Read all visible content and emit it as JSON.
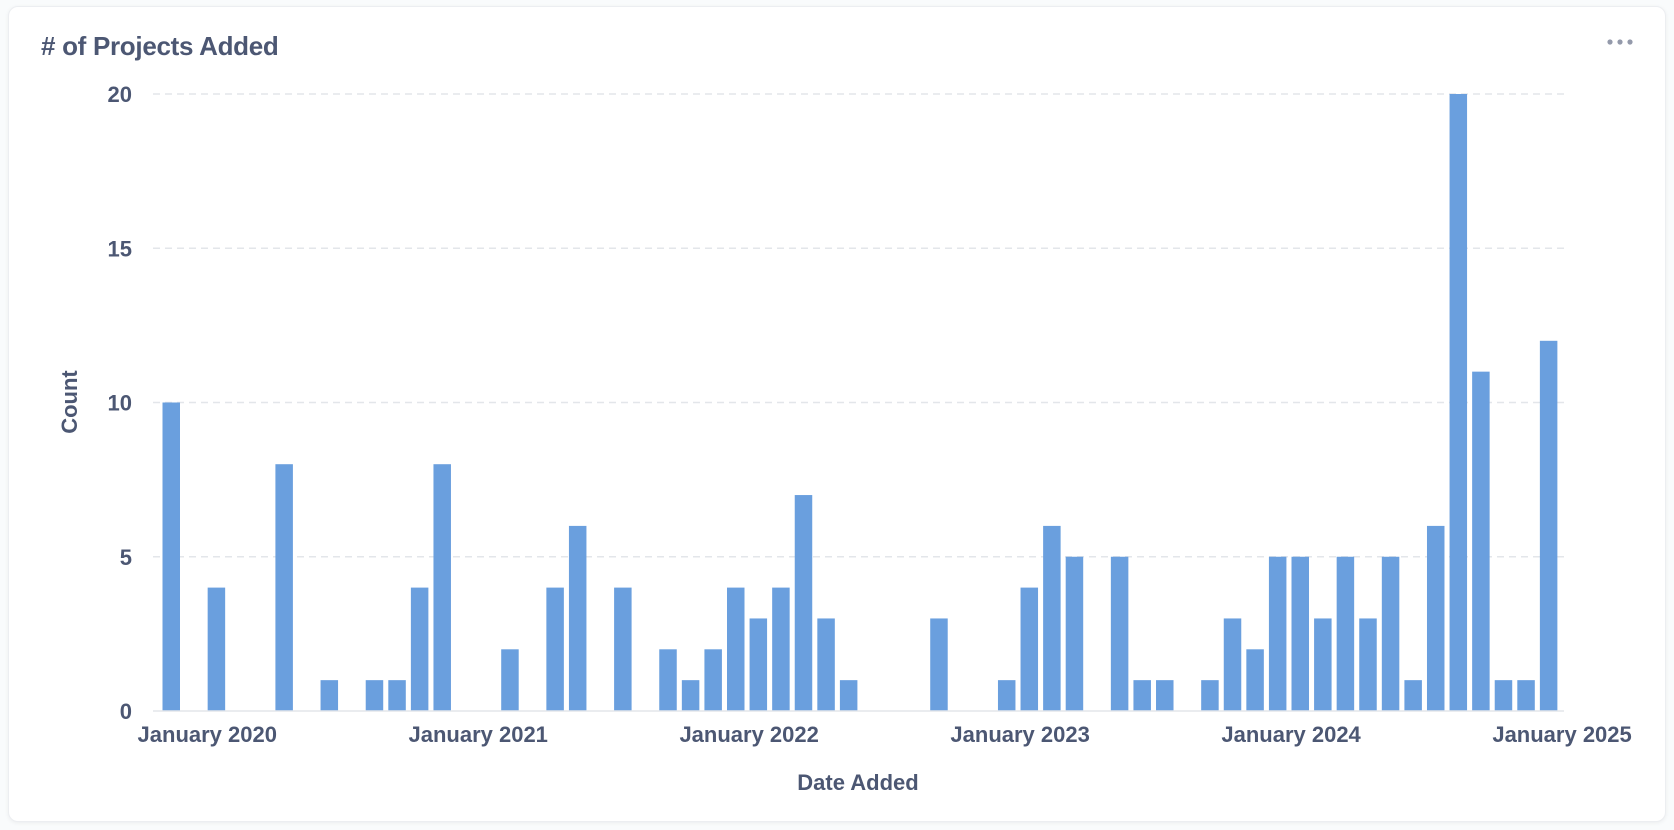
{
  "card": {
    "title": "# of Projects Added",
    "menu_icon": "ellipsis-icon"
  },
  "chart_data": {
    "type": "bar",
    "title": "# of Projects Added",
    "xlabel": "Date Added",
    "ylabel": "Count",
    "ylim": [
      0,
      20
    ],
    "y_ticks": [
      0,
      5,
      10,
      15,
      20
    ],
    "x_tick_labels": [
      "January 2020",
      "January 2021",
      "January 2022",
      "January 2023",
      "January 2024",
      "January 2025"
    ],
    "grid": "horizontal dashed",
    "bar_color": "#6a9fde",
    "categories": [
      "2020-01",
      "2020-02",
      "2020-03",
      "2020-04",
      "2020-05",
      "2020-06",
      "2020-07",
      "2020-08",
      "2020-09",
      "2020-10",
      "2020-11",
      "2020-12",
      "2021-01",
      "2021-02",
      "2021-03",
      "2021-04",
      "2021-05",
      "2021-06",
      "2021-07",
      "2021-08",
      "2021-09",
      "2021-10",
      "2021-11",
      "2021-12",
      "2022-01",
      "2022-02",
      "2022-03",
      "2022-04",
      "2022-05",
      "2022-06",
      "2022-07",
      "2022-08",
      "2022-09",
      "2022-10",
      "2022-11",
      "2022-12",
      "2023-01",
      "2023-02",
      "2023-03",
      "2023-04",
      "2023-05",
      "2023-06",
      "2023-07",
      "2023-08",
      "2023-09",
      "2023-10",
      "2023-11",
      "2023-12",
      "2024-01",
      "2024-02",
      "2024-03",
      "2024-04",
      "2024-05",
      "2024-06",
      "2024-07",
      "2024-08",
      "2024-09",
      "2024-10",
      "2024-11",
      "2024-12",
      "2025-01",
      "2025-02"
    ],
    "values": [
      10,
      0,
      4,
      0,
      0,
      8,
      0,
      1,
      0,
      1,
      1,
      4,
      8,
      0,
      0,
      2,
      0,
      4,
      6,
      0,
      4,
      0,
      2,
      1,
      2,
      4,
      3,
      4,
      7,
      3,
      1,
      0,
      0,
      0,
      3,
      0,
      0,
      1,
      4,
      6,
      5,
      0,
      5,
      1,
      1,
      0,
      1,
      3,
      2,
      5,
      5,
      3,
      5,
      3,
      5,
      1,
      6,
      20,
      11,
      1,
      1,
      12
    ]
  }
}
